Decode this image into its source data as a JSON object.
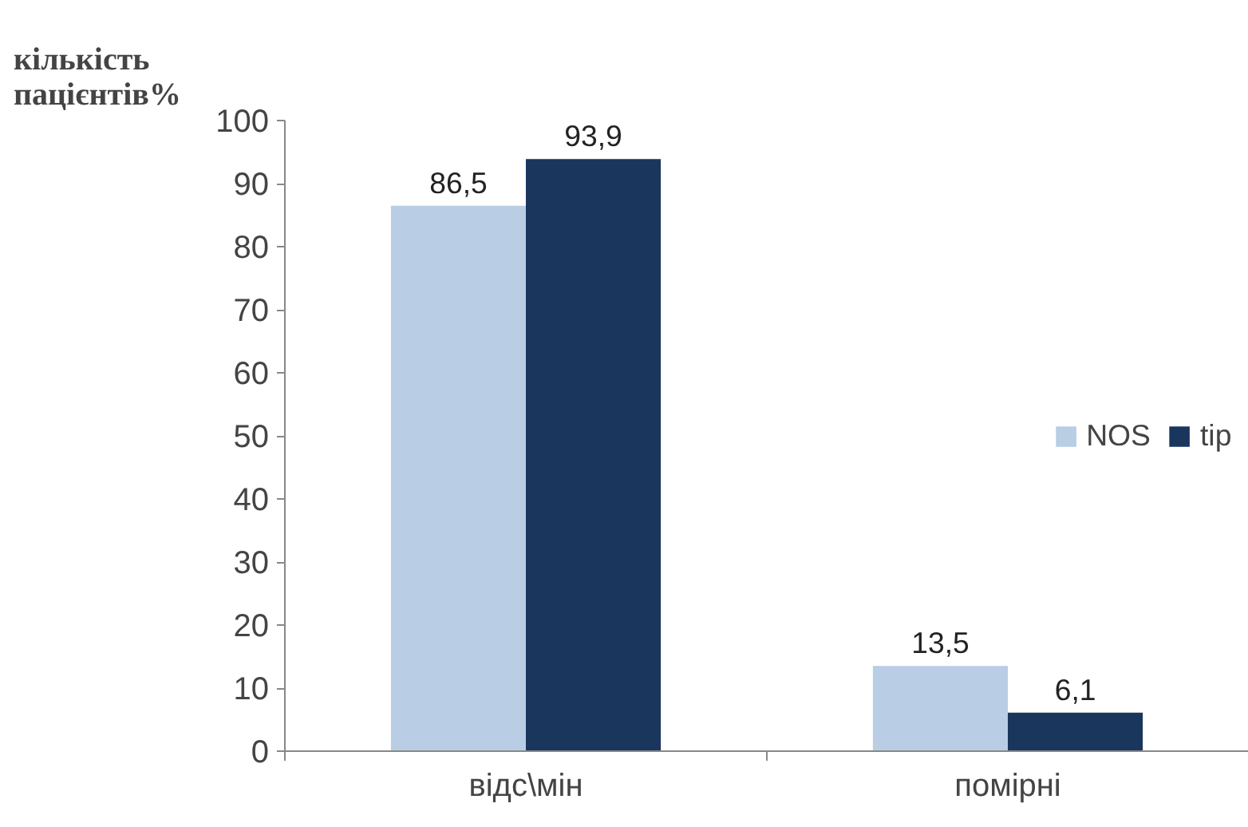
{
  "chart_data": {
    "type": "bar",
    "ylabel": "кількість пацієнтів%",
    "categories": [
      "відс\\мін",
      "помірні"
    ],
    "series": [
      {
        "name": "NOS",
        "color": "#b9cde5",
        "values": [
          86.5,
          13.5
        ],
        "value_labels": [
          "86,5",
          "13,5"
        ]
      },
      {
        "name": "tip",
        "color": "#1b365d",
        "values": [
          93.9,
          6.1
        ],
        "value_labels": [
          "93,9",
          "6,1"
        ]
      }
    ],
    "ylim": [
      0,
      100
    ],
    "yticks": [
      0,
      10,
      20,
      30,
      40,
      50,
      60,
      70,
      80,
      90,
      100
    ],
    "legend": "right"
  }
}
